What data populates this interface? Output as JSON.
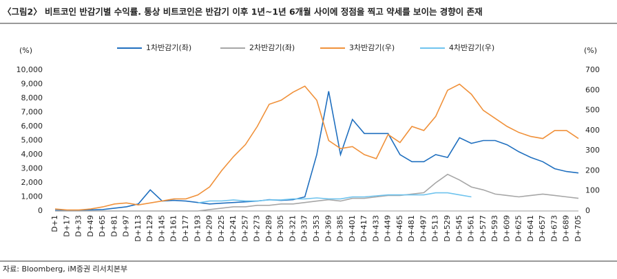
{
  "title": "〈그림2〉 비트코인 반감기별 수익률. 통상 비트코인은 반감기 이후 1년~1년 6개월 사이에 정점을 찍고 약세를 보이는 경향이 존재",
  "source": "자료: Bloomberg, iM증권 리서치본부",
  "chart_data": {
    "type": "line",
    "y_label": "(%)",
    "y2_label": "(%)",
    "categories": [
      "D+1",
      "D+17",
      "D+33",
      "D+49",
      "D+65",
      "D+81",
      "D+97",
      "D+113",
      "D+129",
      "D+145",
      "D+161",
      "D+177",
      "D+193",
      "D+209",
      "D+225",
      "D+241",
      "D+257",
      "D+273",
      "D+289",
      "D+305",
      "D+321",
      "D+337",
      "D+353",
      "D+369",
      "D+385",
      "D+401",
      "D+417",
      "D+433",
      "D+449",
      "D+465",
      "D+481",
      "D+497",
      "D+513",
      "D+529",
      "D+545",
      "D+561",
      "D+577",
      "D+593",
      "D+609",
      "D+625",
      "D+641",
      "D+657",
      "D+673",
      "D+689",
      "D+705"
    ],
    "series": [
      {
        "name": "1차반감기(좌)",
        "color": "#1f6fbf",
        "axis": "y",
        "values": [
          50,
          50,
          50,
          80,
          100,
          200,
          300,
          500,
          1500,
          700,
          750,
          700,
          600,
          500,
          550,
          600,
          650,
          700,
          800,
          750,
          800,
          1000,
          4000,
          8500,
          4000,
          6500,
          5500,
          5500,
          5500,
          4000,
          3500,
          3500,
          4000,
          3800,
          5200,
          4800,
          5000,
          5000,
          4700,
          4200,
          3800,
          3500,
          3000,
          2800,
          2700
        ]
      },
      {
        "name": "2차반감기(좌)",
        "color": "#a6a6a6",
        "axis": "y",
        "values": [
          0,
          0,
          0,
          0,
          0,
          0,
          0,
          0,
          0,
          0,
          0,
          0,
          0,
          100,
          200,
          300,
          300,
          400,
          400,
          500,
          500,
          600,
          700,
          800,
          700,
          900,
          900,
          1000,
          1100,
          1100,
          1200,
          1300,
          2000,
          2600,
          2200,
          1700,
          1500,
          1200,
          1100,
          1000,
          1100,
          1200,
          1100,
          1000,
          900
        ]
      },
      {
        "name": "3차반감기(우)",
        "color": "#f0913a",
        "axis": "y2",
        "values": [
          10,
          5,
          5,
          10,
          20,
          35,
          40,
          30,
          40,
          50,
          60,
          60,
          80,
          120,
          200,
          270,
          330,
          420,
          530,
          550,
          590,
          620,
          550,
          350,
          310,
          320,
          280,
          260,
          380,
          340,
          420,
          400,
          470,
          600,
          630,
          580,
          500,
          460,
          420,
          390,
          370,
          360,
          400,
          400,
          360
        ]
      },
      {
        "name": "4차반감기(우)",
        "color": "#6ec3ee",
        "axis": "y2",
        "values": [
          null,
          null,
          null,
          null,
          null,
          null,
          null,
          null,
          null,
          null,
          null,
          null,
          40,
          50,
          50,
          55,
          50,
          50,
          55,
          55,
          60,
          60,
          65,
          60,
          60,
          70,
          70,
          75,
          80,
          80,
          80,
          80,
          90,
          90,
          80,
          70,
          null,
          null,
          null,
          null,
          null,
          null,
          null,
          null,
          null
        ]
      }
    ],
    "ylim": [
      0,
      10000
    ],
    "yticks": [
      0,
      {
        "value": 1000,
        "label": "1,000"
      },
      {
        "value": 2000,
        "label": "2,000"
      },
      {
        "value": 3000,
        "label": "3,000"
      },
      {
        "value": 4000,
        "label": "4,000"
      },
      {
        "value": 5000,
        "label": "5,000"
      },
      {
        "value": 6000,
        "label": "6,000"
      },
      {
        "value": 7000,
        "label": "7,000"
      },
      {
        "value": 8000,
        "label": "8,000"
      },
      {
        "value": 9000,
        "label": "9,000"
      },
      {
        "value": 10000,
        "label": "10,000"
      }
    ],
    "y2lim": [
      0,
      700
    ],
    "y2ticks": [
      0,
      100,
      200,
      300,
      400,
      500,
      600,
      700
    ],
    "legend": "top"
  }
}
